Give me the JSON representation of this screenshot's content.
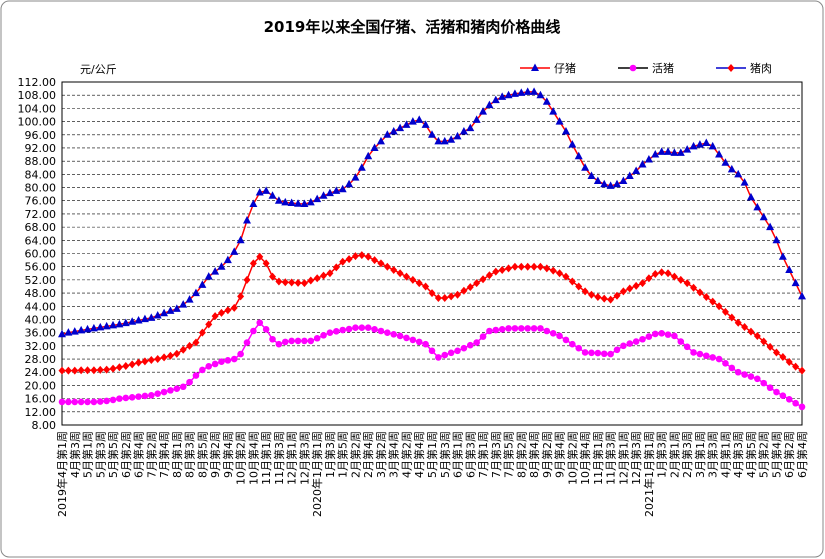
{
  "chart_data": {
    "type": "line",
    "title": "2019年以来全国仔猪、活猪和猪肉价格曲线",
    "y_axis_label": "元/公斤",
    "categories": [
      "2019年4月第1周",
      null,
      "4月第3周",
      null,
      "5月第1周",
      null,
      "5月第3周",
      null,
      "5月第5周",
      null,
      "6月第2周",
      null,
      "6月第4周",
      null,
      "7月第2周",
      null,
      "7月第4周",
      null,
      "8月第1周",
      null,
      "8月第3周",
      null,
      "8月第5周",
      null,
      "9月第2周",
      null,
      "9月第4周",
      null,
      "10月第2周",
      null,
      "10月第4周",
      null,
      "11月第1周",
      null,
      "11月第3周",
      null,
      "12月第1周",
      null,
      "12月第3周",
      null,
      "2020年1月第1周",
      null,
      "1月第3周",
      null,
      "1月第5周",
      null,
      "2月第2周",
      null,
      "2月第4周",
      null,
      "3月第2周",
      null,
      "3月第4周",
      null,
      "4月第2周",
      null,
      "4月第4周",
      null,
      "5月第1周",
      null,
      "5月第3周",
      null,
      "6月第1周",
      null,
      "6月第3周",
      null,
      "7月第1周",
      null,
      "7月第3周",
      null,
      "7月第5周",
      null,
      "8月第2周",
      null,
      "8月第4周",
      null,
      "9月第2周",
      null,
      "9月第4周",
      null,
      "10月第2周",
      null,
      "10月第4周",
      null,
      "11月第1周",
      null,
      "11月第3周",
      null,
      "12月第1周",
      null,
      "12月第3周",
      null,
      "2021年1月第1周",
      null,
      "1月第3周",
      null,
      "2月第1周",
      null,
      "2月第3周",
      null,
      "3月第1周",
      null,
      "3月第3周",
      null,
      "4月第1周",
      null,
      "4月第3周",
      null,
      "4月第5周",
      null,
      "5月第2周",
      null,
      "5月第4周",
      null,
      "6月第2周",
      null,
      "6月第4周"
    ],
    "series": [
      {
        "name": "仔猪",
        "color": "#0000cc",
        "line_color": "#ff0000",
        "marker": "triangle",
        "values": [
          35.5,
          36,
          36.3,
          36.7,
          37,
          37.3,
          37.6,
          37.9,
          38.2,
          38.5,
          38.9,
          39.3,
          39.7,
          40.1,
          40.5,
          41.2,
          41.9,
          42.6,
          43.2,
          44.5,
          46,
          48,
          50.5,
          53,
          54.5,
          56,
          58,
          60.5,
          64,
          70,
          75,
          78.5,
          79,
          77.5,
          76,
          75.5,
          75.3,
          75.1,
          75,
          75.5,
          76.5,
          77.5,
          78.3,
          79,
          79.5,
          81,
          83,
          86,
          89.5,
          92,
          94,
          96,
          97,
          98,
          99,
          100,
          100.5,
          99,
          96,
          94,
          94,
          94.5,
          95.5,
          97,
          98,
          100.5,
          103,
          105,
          106.5,
          107.5,
          108,
          108.4,
          108.7,
          109,
          109,
          108,
          106,
          103,
          100,
          97,
          93,
          89.5,
          86,
          83.5,
          82,
          81,
          80.5,
          81,
          82,
          83.5,
          85,
          87,
          88.5,
          90,
          90.8,
          90.8,
          90.5,
          90.5,
          91.5,
          92.5,
          93,
          93.5,
          92.5,
          90,
          87.5,
          85.5,
          84,
          81.5,
          77,
          74,
          71,
          68,
          64,
          59,
          55,
          51,
          47
        ]
      },
      {
        "name": "活猪",
        "color": "#ff00ff",
        "line_color": "#ff00ff",
        "legend_line_color": "#000000",
        "marker": "circle",
        "values": [
          15,
          15,
          15,
          15,
          15,
          15,
          15.1,
          15.3,
          15.6,
          16,
          16.2,
          16.4,
          16.6,
          16.8,
          17,
          17.5,
          18,
          18.5,
          19,
          19.6,
          21,
          23,
          24.7,
          25.8,
          26.5,
          27.2,
          27.6,
          28,
          29.5,
          33,
          36.5,
          39,
          37,
          34,
          32.5,
          33.2,
          33.5,
          33.5,
          33.5,
          33.5,
          34.3,
          35.2,
          36,
          36.4,
          36.8,
          37.1,
          37.5,
          37.5,
          37.5,
          37,
          36.5,
          36,
          35.5,
          35,
          34.4,
          33.8,
          33.2,
          32.5,
          30.5,
          28.5,
          29.2,
          29.9,
          30.5,
          31.3,
          32.2,
          33,
          34.8,
          36.5,
          36.8,
          37,
          37.3,
          37.3,
          37.3,
          37.3,
          37.3,
          37.3,
          36.5,
          35.8,
          35,
          33.8,
          32.5,
          31.3,
          30,
          29.9,
          29.8,
          29.6,
          29.5,
          30.8,
          32,
          32.7,
          33.3,
          34,
          34.8,
          35.6,
          35.8,
          35.4,
          35,
          33.3,
          31.7,
          30,
          29.5,
          29,
          28.5,
          28,
          26.7,
          25.3,
          24,
          23.3,
          22.7,
          22,
          20.7,
          19.3,
          18,
          16.9,
          15.8,
          14.6,
          13.5
        ]
      },
      {
        "name": "猪肉",
        "color": "#ff0000",
        "line_color": "#ff0000",
        "legend_line_color": "#0000cc",
        "marker": "diamond",
        "values": [
          24.5,
          24.5,
          24.5,
          24.6,
          24.6,
          24.6,
          24.7,
          24.8,
          25.1,
          25.5,
          25.9,
          26.4,
          26.9,
          27.3,
          27.7,
          28,
          28.5,
          29,
          29.6,
          30.8,
          32,
          33,
          36,
          38.5,
          41,
          42,
          42.8,
          43.5,
          47,
          52,
          57,
          59,
          57,
          53,
          51.5,
          51.3,
          51.2,
          51.1,
          51,
          51.8,
          52.5,
          53.3,
          54,
          55.8,
          57.5,
          58.3,
          59.2,
          59.5,
          59,
          58,
          57,
          56,
          55,
          54,
          53,
          52,
          51,
          50,
          48,
          46.5,
          46.5,
          47,
          47.5,
          48.7,
          49.8,
          51,
          52.2,
          53.4,
          54.5,
          55,
          55.5,
          56,
          56,
          56,
          56,
          56,
          55.5,
          54.8,
          54,
          53,
          51.5,
          50,
          48.5,
          47.5,
          46.8,
          46.3,
          46,
          47.2,
          48.5,
          49.4,
          50.2,
          51,
          52.5,
          53.8,
          54.3,
          54,
          53,
          52,
          51,
          49.6,
          48.2,
          46.8,
          45.4,
          44,
          42.3,
          40.6,
          39,
          37.7,
          36.3,
          35,
          33.3,
          31.7,
          30,
          28.6,
          27.1,
          25.7,
          24.5
        ]
      }
    ],
    "ylim": [
      8,
      112
    ],
    "yticks": [
      {
        "value": 8,
        "label": "8.00"
      },
      {
        "value": 12,
        "label": "12.00"
      },
      {
        "value": 16,
        "label": "16.00"
      },
      {
        "value": 20,
        "label": "20.00"
      },
      {
        "value": 24,
        "label": "24.00"
      },
      {
        "value": 28,
        "label": "28.00"
      },
      {
        "value": 32,
        "label": "32.00"
      },
      {
        "value": 36,
        "label": "36.00"
      },
      {
        "value": 40,
        "label": "40.00"
      },
      {
        "value": 44,
        "label": "44.00"
      },
      {
        "value": 48,
        "label": "48.00"
      },
      {
        "value": 52,
        "label": "52.00"
      },
      {
        "value": 56,
        "label": "56.00"
      },
      {
        "value": 60,
        "label": "60.00"
      },
      {
        "value": 64,
        "label": "64.00"
      },
      {
        "value": 68,
        "label": "68.00"
      },
      {
        "value": 72,
        "label": "72.00"
      },
      {
        "value": 76,
        "label": "76.00"
      },
      {
        "value": 80,
        "label": "80.00"
      },
      {
        "value": 84,
        "label": "84.00"
      },
      {
        "value": 88,
        "label": "88.00"
      },
      {
        "value": 92,
        "label": "92.00"
      },
      {
        "value": 96,
        "label": "96.00"
      },
      {
        "value": 100,
        "label": "100.00"
      },
      {
        "value": 104,
        "label": "104.00"
      },
      {
        "value": 108,
        "label": "108.00"
      },
      {
        "value": 112,
        "label": "112.00"
      }
    ],
    "grid": true,
    "legend": "top-right"
  }
}
